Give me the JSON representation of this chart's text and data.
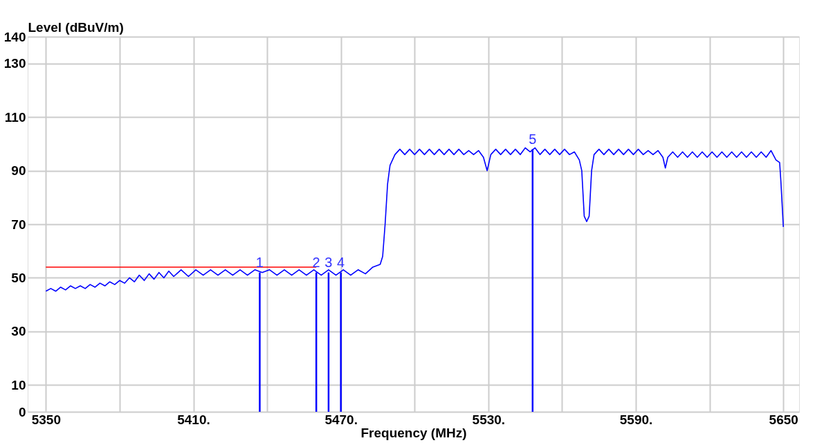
{
  "chart_data": {
    "type": "line",
    "xlabel": "Frequency (MHz)",
    "ylabel": "Level (dBuV/m)",
    "xlim": [
      5344,
      5655
    ],
    "ylim": [
      0,
      140
    ],
    "xticks": [
      5350,
      {
        "value": 5380,
        "label": null
      },
      {
        "value": 5410,
        "label": "5410."
      },
      {
        "value": 5440,
        "label": null
      },
      {
        "value": 5470,
        "label": "5470."
      },
      {
        "value": 5500,
        "label": null
      },
      {
        "value": 5530,
        "label": "5530."
      },
      {
        "value": 5560,
        "label": null
      },
      {
        "value": 5590,
        "label": "5590."
      },
      {
        "value": 5620,
        "label": null
      },
      5650
    ],
    "yticks": [
      0,
      10,
      30,
      50,
      70,
      90,
      110,
      130,
      140
    ],
    "grid": true,
    "line_style": "solid",
    "series": [
      {
        "color": "#0000ff",
        "x": [
          5350,
          5352,
          5354,
          5356,
          5358,
          5360,
          5362,
          5364,
          5366,
          5368,
          5370,
          5372,
          5374,
          5376,
          5378,
          5380,
          5382,
          5384,
          5386,
          5388,
          5390,
          5392,
          5394,
          5396,
          5398,
          5400,
          5402,
          5405,
          5408,
          5411,
          5414,
          5417,
          5420,
          5423,
          5426,
          5429,
          5432,
          5435,
          5438,
          5441,
          5444,
          5447,
          5450,
          5453,
          5456,
          5459,
          5462,
          5465,
          5468,
          5471,
          5474,
          5477,
          5480,
          5483,
          5486,
          5487,
          5488,
          5489,
          5490,
          5492,
          5494,
          5496,
          5498,
          5500,
          5502,
          5504,
          5506,
          5508,
          5510,
          5512,
          5514,
          5516,
          5518,
          5520,
          5522,
          5524,
          5526,
          5528,
          5529.5,
          5531,
          5533,
          5535,
          5537,
          5539,
          5541,
          5543,
          5545,
          5547,
          5549,
          5551,
          5553,
          5555,
          5557,
          5559,
          5561,
          5563,
          5565,
          5567,
          5568,
          5569,
          5570,
          5571,
          5572,
          5573,
          5575,
          5577,
          5579,
          5581,
          5583,
          5585,
          5587,
          5589,
          5591,
          5593,
          5595,
          5597,
          5599,
          5601,
          5602,
          5603,
          5605,
          5607,
          5609,
          5611,
          5613,
          5615,
          5617,
          5619,
          5621,
          5623,
          5625,
          5627,
          5629,
          5631,
          5633,
          5635,
          5637,
          5639,
          5641,
          5643,
          5645,
          5647,
          5648.5,
          5649,
          5650
        ],
        "values": [
          45,
          46,
          45,
          46.5,
          45.5,
          47,
          46,
          47,
          46,
          47.5,
          46.5,
          48,
          47,
          48.5,
          47.5,
          49,
          48,
          50,
          48.5,
          51,
          49,
          51.5,
          49.5,
          52,
          50,
          52.5,
          50.5,
          53,
          50.5,
          53,
          51,
          53,
          51,
          53,
          51,
          53,
          51,
          53,
          52,
          53,
          51,
          53,
          51,
          53,
          51,
          53,
          51,
          53,
          51,
          53,
          51,
          53,
          51.5,
          54,
          55,
          58,
          70,
          85,
          92,
          96,
          98,
          96,
          98,
          96,
          98,
          96,
          98,
          96,
          98,
          96,
          98,
          96,
          98,
          96,
          97.5,
          96,
          97.5,
          95,
          90,
          96,
          98,
          96,
          98,
          96,
          98,
          96,
          98.5,
          97,
          98.5,
          96,
          98,
          96,
          98,
          96,
          98,
          96,
          97,
          94,
          90,
          73,
          71,
          73,
          90,
          96,
          98,
          96,
          98,
          96,
          98,
          96,
          98,
          96,
          98,
          96,
          97.5,
          96,
          97.5,
          95,
          91,
          95,
          97,
          95,
          97,
          95,
          97,
          95,
          97,
          95,
          97,
          95,
          97,
          95,
          97,
          95,
          97,
          95,
          97,
          95,
          97,
          95,
          97.5,
          94,
          93,
          86,
          69
        ]
      },
      {
        "color": "#ff0000",
        "x": [
          5350,
          5460
        ],
        "values": [
          54,
          54
        ]
      },
      {
        "type": "bar",
        "color": "#0000ff",
        "x": [
          5437,
          5460,
          5465,
          5470,
          5548
        ],
        "values": [
          52,
          52,
          52,
          52,
          98
        ]
      }
    ],
    "annotations": [
      {
        "text": "1",
        "x": 5437,
        "y": 52
      },
      {
        "text": "2",
        "x": 5460,
        "y": 52
      },
      {
        "text": "3",
        "x": 5465,
        "y": 52
      },
      {
        "text": "4",
        "x": 5470,
        "y": 52
      },
      {
        "text": "5",
        "x": 5548,
        "y": 98
      }
    ]
  }
}
